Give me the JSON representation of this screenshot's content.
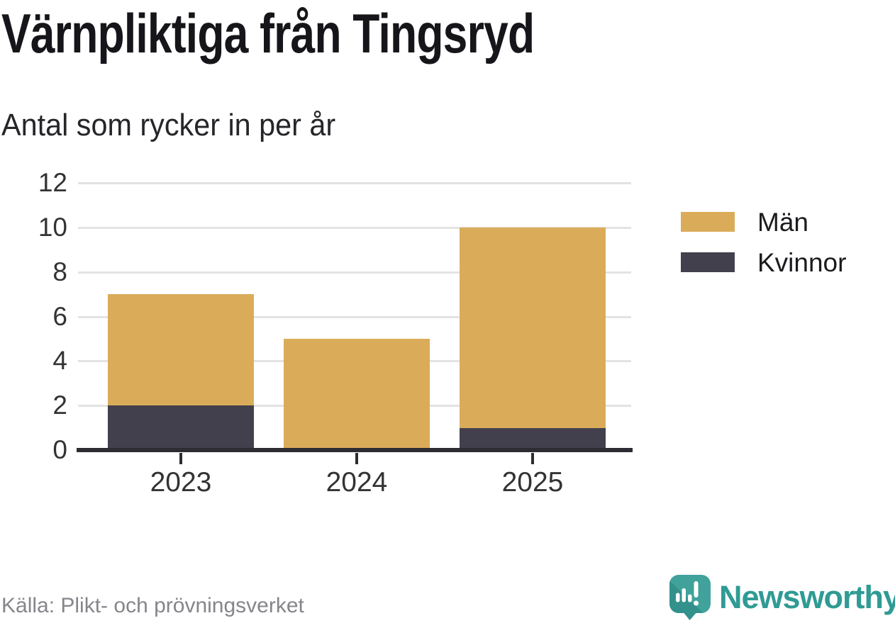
{
  "title": "Värnpliktiga från Tingsryd",
  "subtitle": "Antal som rycker in per år",
  "source": "Källa: Plikt- och prövningsverket",
  "logo": {
    "text": "Newsworthy",
    "icon": "newsworthy-speech-bubble-bar-chart-icon",
    "color": "#2f9b94"
  },
  "colors": {
    "men": "#DAAC5A",
    "women": "#43404D",
    "gridline": "#E3E3E3",
    "axis": "#2E2C33",
    "tick_text": "#333333",
    "title_text": "#16161A",
    "source_text": "#85858B",
    "brand_teal": "#2F9B94"
  },
  "chart_data": {
    "type": "bar",
    "stacked": true,
    "title": "Värnpliktiga från Tingsryd",
    "subtitle": "Antal som rycker in per år",
    "categories": [
      "2023",
      "2024",
      "2025"
    ],
    "series": [
      {
        "name": "Män",
        "color": "#DAAC5A",
        "values": [
          5,
          5,
          9
        ]
      },
      {
        "name": "Kvinnor",
        "color": "#43404D",
        "values": [
          2,
          0,
          1
        ]
      }
    ],
    "stack_bottom_series": "Kvinnor",
    "totals": [
      7,
      5,
      10
    ],
    "xlabel": "",
    "ylabel": "",
    "ylim": [
      0,
      12
    ],
    "yticks": [
      0,
      2,
      4,
      6,
      8,
      10,
      12
    ],
    "grid": true,
    "legend_position": "right",
    "source": "Källa: Plikt- och prövningsverket"
  }
}
